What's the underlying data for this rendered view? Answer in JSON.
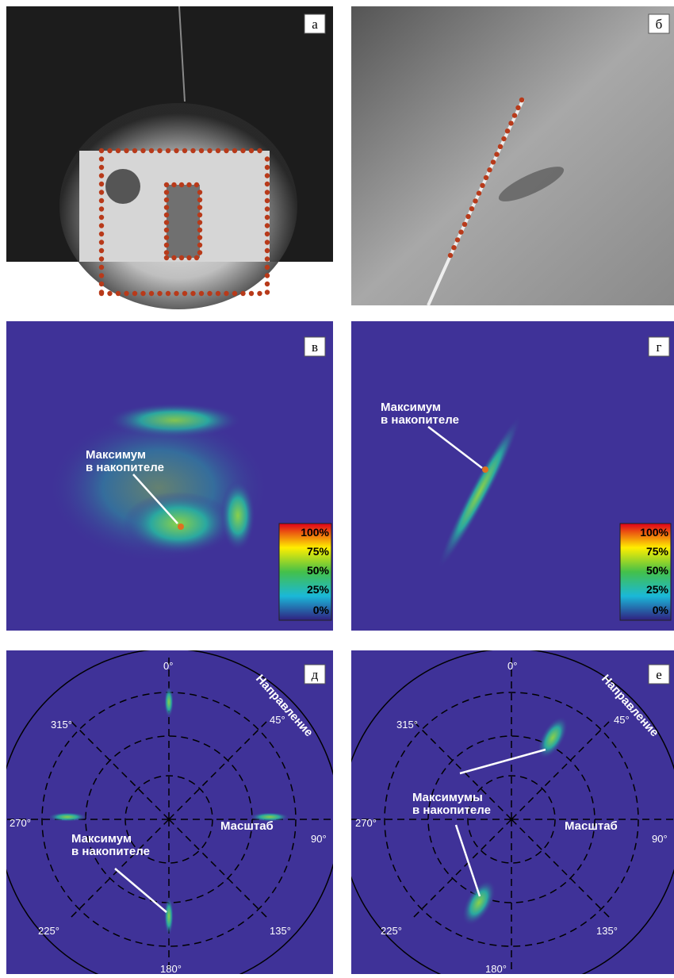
{
  "panels": [
    {
      "letter": "а"
    },
    {
      "letter": "б"
    },
    {
      "letter": "в",
      "annotation": [
        "Максимум",
        "в накопителе"
      ],
      "colorbar": [
        "100%",
        "75%",
        "50%",
        "25%",
        "0%"
      ]
    },
    {
      "letter": "г",
      "annotation": [
        "Максимум",
        "в накопителе"
      ],
      "colorbar": [
        "100%",
        "75%",
        "50%",
        "25%",
        "0%"
      ]
    },
    {
      "letter": "д",
      "angles": [
        "0°",
        "45°",
        "90°",
        "135°",
        "180°",
        "225°",
        "270°",
        "315°"
      ],
      "direction": "Направление",
      "scale": "Масштаб",
      "annotation": [
        "Максимум",
        "в накопителе"
      ]
    },
    {
      "letter": "е",
      "angles": [
        "0°",
        "45°",
        "90°",
        "135°",
        "180°",
        "225°",
        "270°",
        "315°"
      ],
      "direction": "Направление",
      "scale": "Масштаб",
      "annotation": [
        "Максимумы",
        "в накопителе"
      ]
    }
  ]
}
